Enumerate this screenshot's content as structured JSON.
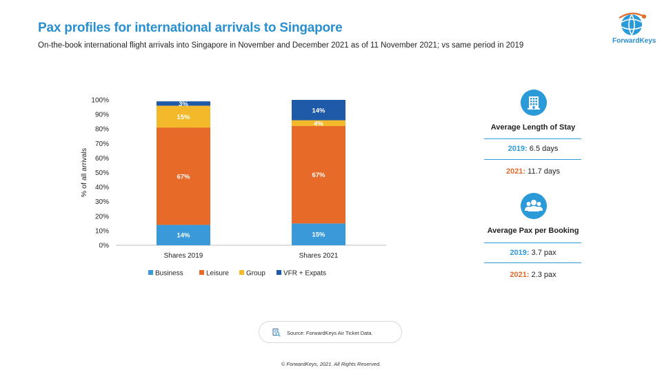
{
  "header": {
    "title": "Pax profiles for international arrivals to Singapore",
    "subtitle": "On-the-book international flight arrivals into Singapore in November and December 2021 as of 11 November 2021; vs  same period in 2019"
  },
  "logo": {
    "text": "ForwardKeys"
  },
  "chart_data": {
    "type": "bar",
    "stacked": true,
    "categories": [
      "Shares 2019",
      "Shares 2021"
    ],
    "series": [
      {
        "name": "Business",
        "values": [
          14,
          15
        ],
        "labels": [
          "14%",
          "15%"
        ],
        "color": "#3a9ad9"
      },
      {
        "name": "Leisure",
        "values": [
          67,
          67
        ],
        "labels": [
          "67%",
          "67%"
        ],
        "color": "#e86a28"
      },
      {
        "name": "Group",
        "values": [
          15,
          4
        ],
        "labels": [
          "15%",
          "4%"
        ],
        "color": "#f4b82b"
      },
      {
        "name": "VFR + Expats",
        "values": [
          3,
          14
        ],
        "labels": [
          "3%",
          "14%"
        ],
        "color": "#1f5aa8"
      }
    ],
    "ylabel": "% of all arrivals",
    "ylim": [
      0,
      100
    ],
    "yticks": [
      "0%",
      "10%",
      "20%",
      "30%",
      "40%",
      "50%",
      "60%",
      "70%",
      "80%",
      "90%",
      "100%"
    ],
    "legend_position": "bottom",
    "grid": false
  },
  "stats": {
    "stay": {
      "title": "Average Length of Stay",
      "y2019_label": "2019:",
      "y2019_value": " 6.5 days",
      "y2021_label": "2021:",
      "y2021_value": " 11.7 days",
      "icon": "hotel-icon"
    },
    "pax": {
      "title": "Average Pax per Booking",
      "y2019_label": "2019:",
      "y2019_value": " 3.7 pax",
      "y2021_label": "2021:",
      "y2021_value": " 2.3 pax",
      "icon": "group-icon"
    }
  },
  "source": {
    "text": "Source: ForwardKeys Air Ticket Data.",
    "icon": "search-document-icon"
  },
  "footer": {
    "copyright": "© ForwardKeys, 2021. All Rights Reserved."
  },
  "colors": {
    "accent": "#2a8fcf",
    "orange": "#e06a2c"
  }
}
